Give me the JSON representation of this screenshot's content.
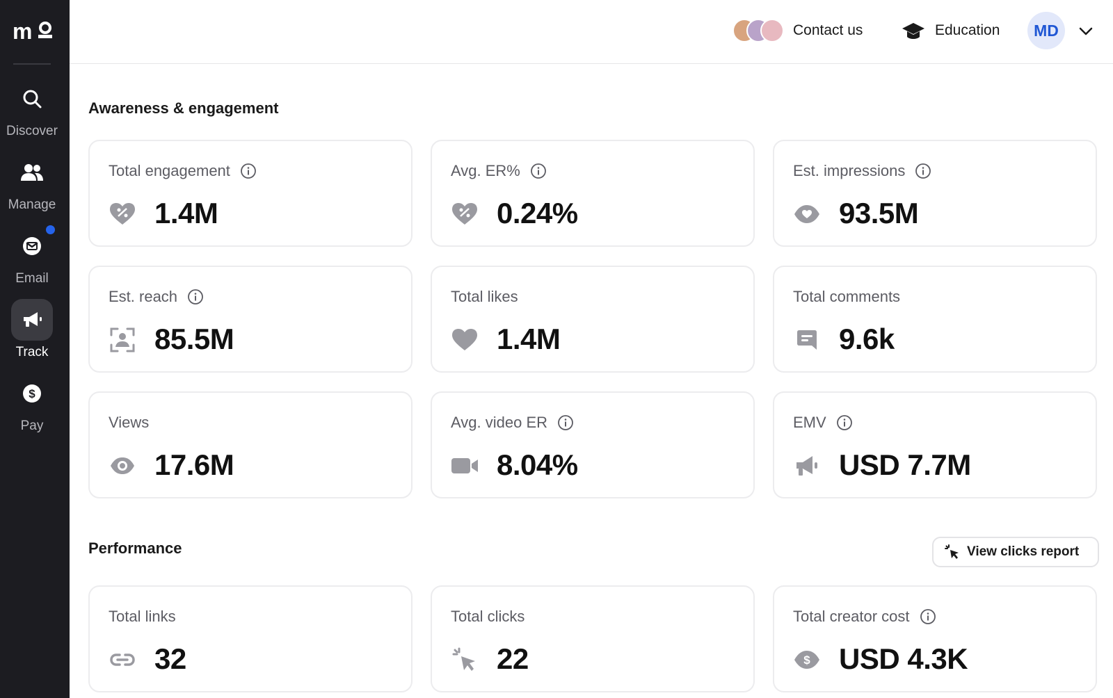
{
  "sidebar": {
    "logo_text": "m",
    "items": [
      {
        "label": "Discover",
        "icon": "search-icon",
        "active": false
      },
      {
        "label": "Manage",
        "icon": "users-icon",
        "active": false
      },
      {
        "label": "Email",
        "icon": "mail-icon",
        "active": false,
        "notification": true
      },
      {
        "label": "Track",
        "icon": "megaphone-icon",
        "active": true
      },
      {
        "label": "Pay",
        "icon": "dollar-icon",
        "active": false
      }
    ],
    "colors": {
      "background": "#1c1c21",
      "active_bg": "#3b3b41",
      "notification": "#2563eb"
    }
  },
  "header": {
    "contact_label": "Contact us",
    "education_label": "Education",
    "user_initials": "MD"
  },
  "awareness": {
    "title": "Awareness & engagement",
    "cards": [
      {
        "label": "Total engagement",
        "value": "1.4M",
        "icon": "heart-percent-icon",
        "info": true
      },
      {
        "label": "Avg. ER%",
        "value": "0.24%",
        "icon": "heart-percent-icon",
        "info": true
      },
      {
        "label": "Est. impressions",
        "value": "93.5M",
        "icon": "eye-icon",
        "info": true
      },
      {
        "label": "Est. reach",
        "value": "85.5M",
        "icon": "reach-icon",
        "info": true
      },
      {
        "label": "Total likes",
        "value": "1.4M",
        "icon": "heart-icon",
        "info": false
      },
      {
        "label": "Total comments",
        "value": "9.6k",
        "icon": "comment-icon",
        "info": false
      },
      {
        "label": "Views",
        "value": "17.6M",
        "icon": "eye-icon",
        "info": false
      },
      {
        "label": "Avg. video ER",
        "value": "8.04%",
        "icon": "video-icon",
        "info": true
      },
      {
        "label": "EMV",
        "value": "USD 7.7M",
        "icon": "megaphone-icon",
        "info": true
      }
    ]
  },
  "performance": {
    "title": "Performance",
    "view_clicks_label": "View clicks report",
    "cards": [
      {
        "label": "Total links",
        "value": "32",
        "icon": "link-icon",
        "info": false
      },
      {
        "label": "Total clicks",
        "value": "22",
        "icon": "click-icon",
        "info": false
      },
      {
        "label": "Total creator cost",
        "value": "USD 4.3K",
        "icon": "money-icon",
        "info": true
      }
    ]
  }
}
